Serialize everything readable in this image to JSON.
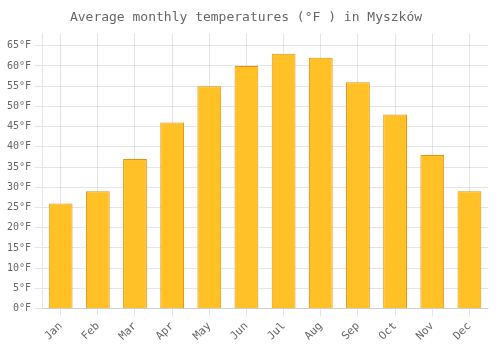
{
  "chart_data": {
    "type": "bar",
    "title": "Average monthly temperatures (°F ) in Myszków",
    "categories": [
      "Jan",
      "Feb",
      "Mar",
      "Apr",
      "May",
      "Jun",
      "Jul",
      "Aug",
      "Sep",
      "Oct",
      "Nov",
      "Dec"
    ],
    "values": [
      26,
      29,
      37,
      46,
      55,
      60,
      63,
      62,
      56,
      48,
      38,
      29
    ],
    "color": "#FFC125",
    "ylim": [
      0,
      68
    ],
    "yticks": [
      {
        "value": 0,
        "label": "0°F"
      },
      {
        "value": 5,
        "label": "5°F"
      },
      {
        "value": 10,
        "label": "10°F"
      },
      {
        "value": 15,
        "label": "15°F"
      },
      {
        "value": 20,
        "label": "20°F"
      },
      {
        "value": 25,
        "label": "25°F"
      },
      {
        "value": 30,
        "label": "30°F"
      },
      {
        "value": 35,
        "label": "35°F"
      },
      {
        "value": 40,
        "label": "40°F"
      },
      {
        "value": 45,
        "label": "45°F"
      },
      {
        "value": 50,
        "label": "50°F"
      },
      {
        "value": 55,
        "label": "55°F"
      },
      {
        "value": 60,
        "label": "60°F"
      },
      {
        "value": 65,
        "label": "65°F"
      }
    ],
    "grid": true
  }
}
